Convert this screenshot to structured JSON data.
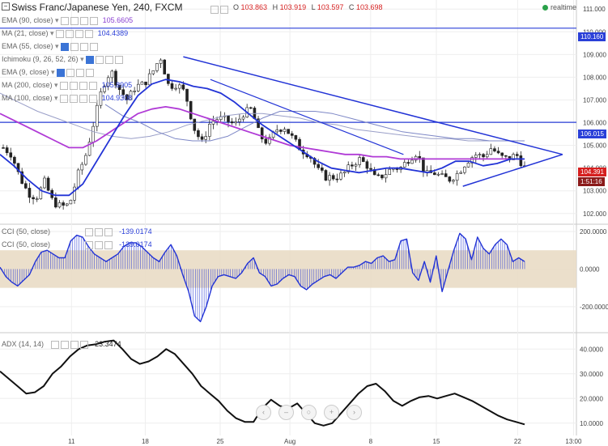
{
  "header": {
    "symbol": "Swiss Franc/Japanese Yen, 240, FXCM",
    "open_label": "O",
    "open": "103.863",
    "high_label": "H",
    "high": "103.919",
    "low_label": "L",
    "low": "103.597",
    "close_label": "C",
    "close": "103.698",
    "realtime": "realtime"
  },
  "indicators": [
    {
      "label": "EMA (90, close)",
      "value": "105.6605",
      "color": "#8a3fd1"
    },
    {
      "label": "MA (21, close)",
      "value": "104.4389",
      "color": "#2a3fd8"
    },
    {
      "label": "EMA (55, close)",
      "value": "",
      "color": "#666666"
    },
    {
      "label": "Ichimoku (9, 26, 52, 26)",
      "value": "",
      "color": "#666666"
    },
    {
      "label": "EMA (9, close)",
      "value": "",
      "color": "#666666"
    },
    {
      "label": "MA (200, close)",
      "value": "105.8905",
      "color": "#2a3fd8"
    },
    {
      "label": "MA (100, close)",
      "value": "104.9308",
      "color": "#2a3fd8"
    }
  ],
  "price_tags": {
    "resistance_high": "110.160",
    "resistance_mid": "106.015",
    "current": "104.391",
    "countdown": "1:51:16",
    "colors": {
      "blue": "#2a3fd8",
      "red": "#d61f1f",
      "darkred": "#8b1a1a"
    }
  },
  "cci": {
    "label1": "CCI (50, close)",
    "value1": "-139.0174",
    "label2": "CCI (50, close)",
    "value2": "-139.0174"
  },
  "adx": {
    "label": "ADX (14, 14)",
    "value": "23.3474"
  },
  "nav_icons": [
    "chevron-left-icon",
    "minus-icon",
    "reset-icon",
    "plus-icon",
    "chevron-right-icon"
  ],
  "nav_glyphs": [
    "‹",
    "–",
    "○",
    "+",
    "›"
  ],
  "chart_data": [
    {
      "type": "candlestick",
      "title": "Swiss Franc/Japanese Yen, 240, FXCM",
      "ylim": [
        101.6,
        111.4
      ],
      "yticks": [
        "111.000",
        "110.000",
        "109.000",
        "108.000",
        "107.000",
        "106.000",
        "105.000",
        "104.000",
        "103.000",
        "102.000"
      ],
      "x_tick_labels": [
        "11",
        "18",
        "25",
        "Aug",
        "8",
        "15",
        "22",
        "13:00"
      ],
      "close_path": [
        104.9,
        104.6,
        103.6,
        102.9,
        102.7,
        103.4,
        102.5,
        102.3,
        102.4,
        103.7,
        104.6,
        106.1,
        107.6,
        108.3,
        107.5,
        107.0,
        107.6,
        107.7,
        108.2,
        108.9,
        107.6,
        107.7,
        107.3,
        105.8,
        105.1,
        106.0,
        106.2,
        106.1,
        105.9,
        106.4,
        106.6,
        105.4,
        105.1,
        105.7,
        105.8,
        105.3,
        104.8,
        104.6,
        103.9,
        103.6,
        103.6,
        103.7,
        104.1,
        104.4,
        104.1,
        103.5,
        103.7,
        104.0,
        104.0,
        104.4,
        104.7,
        103.7,
        103.8,
        103.6,
        103.5,
        103.8,
        104.3,
        104.6,
        104.5,
        104.9,
        104.5,
        104.4,
        104.6,
        104.0
      ],
      "ma21": [
        104.6,
        104.1,
        103.5,
        103.0,
        102.8,
        102.8,
        103.3,
        104.3,
        105.3,
        106.3,
        107.2,
        107.7,
        107.9,
        107.8,
        107.6,
        107.5,
        107.3,
        106.9,
        106.4,
        105.9,
        105.5,
        105.1,
        104.7,
        104.3,
        104.0,
        103.9,
        103.8,
        103.9,
        104.0,
        104.0,
        103.9,
        103.8,
        104.0,
        104.3,
        104.3,
        104.1,
        104.2,
        104.4,
        104.4
      ],
      "ema90": [
        106.4,
        106.1,
        105.8,
        105.5,
        105.2,
        104.9,
        104.9,
        105.2,
        105.6,
        106.0,
        106.4,
        106.6,
        106.7,
        106.6,
        106.4,
        106.2,
        106.0,
        105.8,
        105.6,
        105.4,
        105.2,
        105.0,
        104.9,
        104.8,
        104.7,
        104.6,
        104.6,
        104.5,
        104.5,
        104.4,
        104.4,
        104.4,
        104.4,
        104.4,
        104.4,
        104.4,
        104.4,
        104.4,
        104.4
      ],
      "ma200": [
        107.3,
        106.9,
        106.5,
        106.2,
        105.9,
        105.6,
        105.4,
        105.3,
        105.4,
        105.6,
        105.9,
        106.1,
        106.3,
        106.4,
        106.4,
        106.3,
        106.2,
        106.0,
        105.9,
        105.7,
        105.6,
        105.5,
        105.4,
        105.3,
        105.3,
        105.2,
        105.2,
        105.2,
        105.2
      ],
      "ma100": [
        106.8,
        106.3,
        106.0,
        105.6,
        105.3,
        105.2,
        105.2,
        105.4,
        105.8,
        106.2,
        106.5,
        106.5,
        106.5,
        106.4,
        106.2,
        106.0,
        105.8,
        105.6,
        105.5,
        105.4,
        105.3,
        105.3,
        105.2,
        105.2,
        105.2
      ],
      "trendlines": {
        "upper": {
          "from": [
            0.318,
            108.9
          ],
          "to": [
            0.976,
            104.6
          ]
        },
        "lower": {
          "from": [
            0.803,
            103.2
          ],
          "to": [
            0.976,
            104.6
          ]
        },
        "hlines": [
          110.16,
          106.015
        ]
      }
    },
    {
      "type": "line",
      "title": "CCI (50, close)",
      "ylim": [
        -330,
        230
      ],
      "yticks": [
        "200.0000",
        "0.0000",
        "-200.0000"
      ],
      "band": [
        -100,
        100
      ],
      "values": [
        10,
        -40,
        -70,
        -90,
        -60,
        -30,
        40,
        90,
        100,
        80,
        60,
        60,
        150,
        180,
        170,
        120,
        80,
        60,
        40,
        60,
        80,
        120,
        140,
        140,
        120,
        90,
        60,
        40,
        90,
        130,
        70,
        -30,
        -120,
        -250,
        -280,
        -200,
        -90,
        -40,
        -30,
        -40,
        -50,
        -20,
        30,
        60,
        -20,
        -40,
        -90,
        -80,
        -50,
        -30,
        -40,
        -90,
        -110,
        -80,
        -60,
        -40,
        -30,
        -50,
        -20,
        10,
        10,
        20,
        40,
        30,
        60,
        70,
        40,
        50,
        150,
        160,
        -20,
        -60,
        40,
        -70,
        70,
        -120,
        -10,
        100,
        190,
        160,
        50,
        170,
        110,
        80,
        130,
        160,
        130,
        40,
        60,
        40
      ],
      "x_tick_labels": [
        "11",
        "18",
        "25",
        "Aug",
        "8",
        "15",
        "22",
        "13:00"
      ]
    },
    {
      "type": "line",
      "title": "ADX (14, 14)",
      "ylim": [
        5,
        46
      ],
      "yticks": [
        "40.0000",
        "30.0000",
        "20.0000",
        "10.0000"
      ],
      "values": [
        31,
        28,
        25,
        22,
        22.5,
        25,
        30,
        33,
        37,
        40,
        41.5,
        42,
        43,
        43.5,
        40,
        36,
        34,
        35,
        37,
        40,
        38,
        34,
        30,
        25,
        22,
        19,
        15,
        12,
        10.5,
        10.5,
        16,
        19.5,
        17,
        16,
        18,
        14,
        10,
        9,
        10,
        14,
        18,
        22,
        25,
        26,
        23,
        19,
        17,
        19,
        20.5,
        21,
        20,
        21,
        22,
        20.5,
        19,
        17,
        15,
        13,
        11.5,
        10.5,
        9.5
      ],
      "x_tick_labels": [
        "11",
        "18",
        "25",
        "Aug",
        "8",
        "15",
        "22",
        "13:00"
      ]
    }
  ]
}
